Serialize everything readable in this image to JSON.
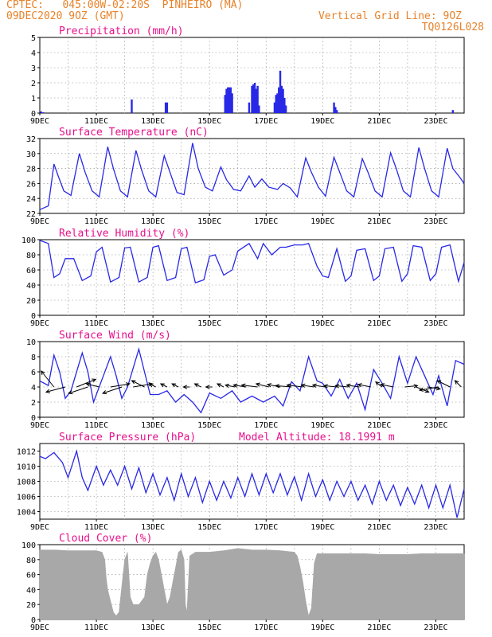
{
  "header": {
    "line1_left": "CPTEC:   045:00W-02:20S  PINHEIRO (MA)",
    "line2_left": "09DEC2020 9OZ (GMT)",
    "line1_right": "Vertical Grid Line: 9OZ",
    "line2_right": "TQ0126L028"
  },
  "colors": {
    "header": "#e8822a",
    "title": "#e8108c",
    "line": "#2828e6",
    "cloud": "#a8a8a8",
    "grid": "#888888"
  },
  "x_tick_labels": [
    "9DEC",
    "11DEC",
    "13DEC",
    "15DEC",
    "17DEC",
    "19DEC",
    "21DEC",
    "23DEC"
  ],
  "x_range": [
    9,
    24
  ],
  "chart_data": [
    {
      "type": "bar",
      "title": "Precipitation (mm/h)",
      "ylim": [
        0,
        5
      ],
      "yticks": [
        0,
        1,
        2,
        3,
        4,
        5
      ],
      "x": [
        9.05,
        9.12,
        12.25,
        13.45,
        13.5,
        15.55,
        15.6,
        15.65,
        15.7,
        15.75,
        15.8,
        16.4,
        16.5,
        16.55,
        16.6,
        16.65,
        16.7,
        16.75,
        17.3,
        17.35,
        17.4,
        17.45,
        17.5,
        17.55,
        17.6,
        17.65,
        17.7,
        19.4,
        19.45,
        19.5,
        23.6
      ],
      "values": [
        0.1,
        0.05,
        0.9,
        0.7,
        0.7,
        1.2,
        1.6,
        1.7,
        1.7,
        1.7,
        1.3,
        0.7,
        1.8,
        1.9,
        2.0,
        1.6,
        1.8,
        0.5,
        0.7,
        1.2,
        1.3,
        1.7,
        2.8,
        1.8,
        1.6,
        1.0,
        0.5,
        0.7,
        0.4,
        0.2,
        0.2
      ]
    },
    {
      "type": "line",
      "title": "Surface Temperature (nC)",
      "ylim": [
        22,
        32
      ],
      "yticks": [
        22,
        24,
        26,
        28,
        30,
        32
      ],
      "x": [
        9,
        9.3,
        9.5,
        9.65,
        9.85,
        10.1,
        10.4,
        10.6,
        10.85,
        11.1,
        11.4,
        11.6,
        11.85,
        12.1,
        12.4,
        12.6,
        12.85,
        13.1,
        13.4,
        13.6,
        13.85,
        14.1,
        14.4,
        14.6,
        14.85,
        15.1,
        15.4,
        15.6,
        15.85,
        16.1,
        16.4,
        16.6,
        16.85,
        17.1,
        17.4,
        17.6,
        17.85,
        18.1,
        18.4,
        18.6,
        18.85,
        19.1,
        19.4,
        19.6,
        19.85,
        20.1,
        20.4,
        20.6,
        20.85,
        21.1,
        21.4,
        21.6,
        21.85,
        22.1,
        22.4,
        22.6,
        22.85,
        23.1,
        23.4,
        23.6,
        23.85,
        24
      ],
      "values": [
        22.5,
        23,
        28.6,
        27,
        25,
        24.4,
        30,
        27.5,
        25,
        24.2,
        30.9,
        28,
        25,
        24.2,
        30.4,
        27.8,
        25,
        24.2,
        29.7,
        27.5,
        24.8,
        24.5,
        31.4,
        28,
        25.5,
        25,
        28.2,
        26.5,
        25.2,
        25,
        27,
        25.5,
        26.6,
        25.5,
        25.2,
        26,
        25.4,
        24.2,
        29.4,
        27.5,
        25.5,
        24.3,
        29.5,
        27.5,
        25,
        24.2,
        29.3,
        27.5,
        25,
        24.2,
        30.1,
        28,
        25,
        24.2,
        30.8,
        28,
        25,
        24.2,
        30.7,
        28,
        26.8,
        26
      ]
    },
    {
      "type": "line",
      "title": "Relative Humidity (%)",
      "ylim": [
        0,
        100
      ],
      "yticks": [
        0,
        20,
        40,
        60,
        80,
        100
      ],
      "x": [
        9,
        9.3,
        9.5,
        9.7,
        9.9,
        10.2,
        10.5,
        10.8,
        11.0,
        11.2,
        11.5,
        11.8,
        12.0,
        12.2,
        12.5,
        12.8,
        13.0,
        13.2,
        13.5,
        13.8,
        14.0,
        14.2,
        14.5,
        14.8,
        15.0,
        15.2,
        15.5,
        15.8,
        16.0,
        16.4,
        16.7,
        16.9,
        17.2,
        17.5,
        17.7,
        18.0,
        18.3,
        18.5,
        18.8,
        19.0,
        19.2,
        19.5,
        19.8,
        20.0,
        20.2,
        20.5,
        20.8,
        21.0,
        21.2,
        21.5,
        21.8,
        22.0,
        22.2,
        22.5,
        22.8,
        23.0,
        23.2,
        23.5,
        23.8,
        24
      ],
      "values": [
        99,
        95,
        50,
        55,
        75,
        75,
        46,
        52,
        84,
        90,
        44,
        50,
        89,
        90,
        44,
        50,
        90,
        92,
        46,
        50,
        88,
        90,
        43,
        47,
        78,
        80,
        53,
        60,
        85,
        95,
        75,
        95,
        80,
        90,
        90,
        93,
        93,
        95,
        65,
        52,
        50,
        88,
        45,
        52,
        86,
        88,
        46,
        52,
        88,
        90,
        45,
        55,
        92,
        90,
        46,
        55,
        90,
        93,
        45,
        70
      ]
    },
    {
      "type": "line",
      "title": "Surface Wind (m/s)",
      "ylim": [
        0,
        10
      ],
      "yticks": [
        0,
        2,
        4,
        6,
        8,
        10
      ],
      "x": [
        9,
        9.3,
        9.5,
        9.7,
        9.9,
        10.1,
        10.5,
        10.7,
        10.9,
        11.1,
        11.5,
        11.7,
        11.9,
        12.1,
        12.5,
        12.7,
        12.9,
        13.2,
        13.5,
        13.8,
        14.1,
        14.4,
        14.7,
        15.0,
        15.4,
        15.8,
        16.1,
        16.5,
        16.9,
        17.3,
        17.6,
        17.9,
        18.2,
        18.5,
        18.8,
        19.0,
        19.3,
        19.6,
        19.9,
        20.2,
        20.5,
        20.8,
        21.1,
        21.4,
        21.7,
        22.0,
        22.3,
        22.6,
        22.9,
        23.1,
        23.4,
        23.7,
        24
      ],
      "values": [
        4.8,
        4.2,
        8.2,
        6,
        2.5,
        3.5,
        8.5,
        6,
        2,
        4,
        8,
        5.5,
        2.5,
        4,
        9,
        6,
        3,
        3,
        3.5,
        2,
        3,
        2,
        0.6,
        3.2,
        2.5,
        3.5,
        2,
        2.8,
        2,
        2.8,
        1.5,
        4.7,
        3.5,
        8,
        4.8,
        4.5,
        2.8,
        5,
        2.5,
        4.5,
        1,
        6.3,
        4.5,
        2.5,
        8,
        4.5,
        8,
        5.5,
        3,
        5.5,
        1.5,
        7.5,
        7
      ]
    },
    {
      "type": "line",
      "title": "Surface Pressure (hPa)",
      "subtitle": "Model Altitude: 18.1991 m",
      "ylim": [
        1003,
        1013
      ],
      "yticks": [
        1004,
        1006,
        1008,
        1010,
        1012
      ],
      "x": [
        9,
        9.2,
        9.5,
        9.8,
        10.0,
        10.3,
        10.5,
        10.7,
        11.0,
        11.25,
        11.5,
        11.75,
        12.0,
        12.25,
        12.5,
        12.75,
        13.0,
        13.25,
        13.5,
        13.75,
        14.0,
        14.25,
        14.5,
        14.75,
        15.0,
        15.25,
        15.5,
        15.75,
        16.0,
        16.25,
        16.5,
        16.75,
        17.0,
        17.25,
        17.5,
        17.75,
        18.0,
        18.25,
        18.5,
        18.75,
        19.0,
        19.25,
        19.5,
        19.75,
        20.0,
        20.25,
        20.5,
        20.75,
        21.0,
        21.25,
        21.5,
        21.75,
        22.0,
        22.25,
        22.5,
        22.75,
        23.0,
        23.25,
        23.5,
        23.75,
        24
      ],
      "values": [
        1011.3,
        1011,
        1011.8,
        1010.5,
        1008.5,
        1012,
        1008.5,
        1006.8,
        1010,
        1007.5,
        1009.5,
        1007.5,
        1010,
        1007,
        1009.8,
        1006.5,
        1009,
        1006.2,
        1008.5,
        1005.5,
        1009,
        1006,
        1008.5,
        1005.2,
        1008,
        1005.5,
        1008,
        1005.8,
        1008.5,
        1006,
        1009,
        1006.2,
        1009,
        1006.5,
        1009,
        1006.2,
        1008.6,
        1005.5,
        1009,
        1006,
        1008.2,
        1005.5,
        1008,
        1006,
        1008,
        1005.5,
        1007.5,
        1005,
        1008,
        1005.5,
        1007.5,
        1004.8,
        1007.2,
        1005,
        1007.5,
        1004.5,
        1007.5,
        1004.5,
        1007.5,
        1003.2,
        1007
      ]
    },
    {
      "type": "area",
      "title": "Cloud Cover (%)",
      "ylim": [
        0,
        100
      ],
      "yticks": [
        0,
        20,
        40,
        60,
        80,
        100
      ],
      "x": [
        9,
        9.5,
        10,
        10.5,
        11,
        11.2,
        11.3,
        11.35,
        11.4,
        11.5,
        11.6,
        11.7,
        11.8,
        11.9,
        12.0,
        12.1,
        12.2,
        12.3,
        12.5,
        12.6,
        12.7,
        12.8,
        12.9,
        13.0,
        13.1,
        13.2,
        13.3,
        13.4,
        13.5,
        13.6,
        13.7,
        13.8,
        13.9,
        14.0,
        14.1,
        14.15,
        14.2,
        14.3,
        14.5,
        15,
        15.5,
        16,
        16.5,
        17,
        17.5,
        18.0,
        18.1,
        18.2,
        18.3,
        18.4,
        18.5,
        18.6,
        18.7,
        18.8,
        18.9,
        19,
        19.5,
        20,
        20.5,
        21,
        21.5,
        22,
        22.5,
        23,
        23.5,
        24
      ],
      "values": [
        93,
        93,
        92,
        92,
        92,
        90,
        80,
        55,
        40,
        25,
        10,
        5,
        10,
        45,
        80,
        90,
        30,
        20,
        20,
        25,
        30,
        60,
        75,
        85,
        90,
        80,
        60,
        40,
        20,
        30,
        50,
        70,
        90,
        93,
        80,
        20,
        10,
        85,
        90,
        90,
        92,
        95,
        93,
        93,
        92,
        90,
        85,
        70,
        50,
        25,
        5,
        15,
        75,
        88,
        88,
        88,
        88,
        88,
        88,
        87,
        87,
        87,
        88,
        88,
        88,
        88
      ]
    }
  ],
  "wind_vectors": {
    "x": [
      9.5,
      9.9,
      10.3,
      10.7,
      11.1,
      11.5,
      11.9,
      12.3,
      12.7,
      13.1,
      13.5,
      13.9,
      14.3,
      14.7,
      15.1,
      15.5,
      15.9,
      16.3,
      16.7,
      17.1,
      17.5,
      17.9,
      18.3,
      18.7,
      19.1,
      19.5,
      19.9,
      20.3,
      20.7,
      21.1,
      21.5,
      21.9,
      22.3,
      22.7,
      23.1,
      23.5,
      23.9
    ],
    "u": [
      -2,
      -3,
      3,
      -3,
      -2,
      3,
      -3,
      3,
      -2,
      -1,
      -1,
      -1,
      -1,
      -1,
      -1,
      -1,
      -1.5,
      -2,
      -2.5,
      -2,
      -2,
      -2.5,
      -2.5,
      -2,
      -2,
      -2,
      -2,
      -2,
      -2,
      -1,
      -2,
      2,
      2,
      2,
      -3,
      -2,
      -1
    ],
    "v": [
      2.5,
      -0.8,
      1.2,
      -1,
      0.5,
      0.5,
      -1,
      0.5,
      1,
      0.5,
      0.5,
      0.5,
      0,
      0.5,
      0,
      0.5,
      0.3,
      0.3,
      0.3,
      0.5,
      0.4,
      0.2,
      0.3,
      0.3,
      0.3,
      0.2,
      0.2,
      0.3,
      0.4,
      0.8,
      0.4,
      0.2,
      -0.8,
      -0.3,
      -0.5,
      1,
      1
    ]
  }
}
